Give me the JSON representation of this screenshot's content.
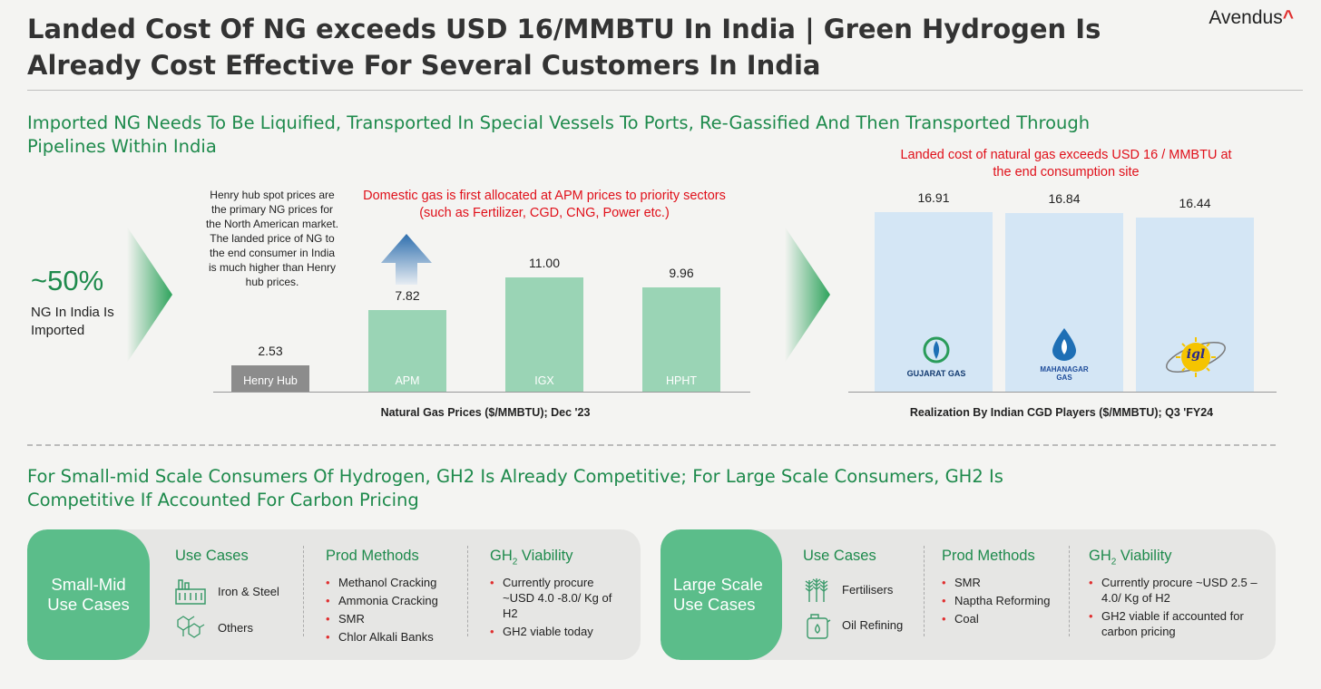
{
  "title": "Landed Cost Of NG exceeds USD 16/MMBTU In India | Green Hydrogen Is Already Cost Effective For Several Customers In India",
  "logo": {
    "text": "Avendus",
    "mark": "^"
  },
  "section1": {
    "heading": "Imported NG Needs To Be Liquified, Transported In Special Vessels To Ports, Re-Gassified And Then Transported Through Pipelines Within India",
    "stat_value": "~50%",
    "stat_label": "NG In India Is Imported",
    "henry_note": "Henry hub spot prices are the  primary NG prices for the North American market. The landed price of NG to the end consumer in India is much higher than Henry hub prices.",
    "apm_note": "Domestic gas is first allocated at APM prices to priority sectors (such as Fertilizer, CGD, CNG, Power etc.)",
    "landed_note": "Landed cost of natural gas exceeds USD 16 / MMBTU at the end consumption site"
  },
  "chart_data": [
    {
      "type": "bar",
      "title": "",
      "xlabel": "Natural Gas Prices ($/MMBTU); Dec '23",
      "categories": [
        "Henry Hub",
        "APM",
        "IGX",
        "HPHT"
      ],
      "values": [
        2.53,
        7.82,
        11.0,
        9.96
      ],
      "value_labels": [
        "2.53",
        "7.82",
        "11.00",
        "9.96"
      ],
      "ylim": [
        0,
        12
      ],
      "colors": [
        "#8c8c8c",
        "#9ad4b5",
        "#9ad4b5",
        "#9ad4b5"
      ]
    },
    {
      "type": "bar",
      "title": "",
      "xlabel": "Realization By Indian CGD Players ($/MMBTU); Q3 'FY24",
      "categories": [
        "Gujarat Gas",
        "Mahanagar Gas",
        "IGL"
      ],
      "values": [
        16.91,
        16.84,
        16.44
      ],
      "value_labels": [
        "16.91",
        "16.84",
        "16.44"
      ],
      "ylim": [
        0,
        17.6
      ],
      "colors": [
        "#d4e6f5",
        "#d4e6f5",
        "#d4e6f5"
      ]
    }
  ],
  "logos": {
    "gujarat": "GUJARAT GAS",
    "mahanagar1": "MAHANAGAR",
    "mahanagar2": "GAS",
    "igl": "igl"
  },
  "section2": {
    "heading": "For Small-mid Scale Consumers Of Hydrogen, GH2 Is Already Competitive; For Large Scale Consumers, GH2 Is Competitive If Accounted For Carbon Pricing"
  },
  "cards": [
    {
      "tag": "Small-Mid Use Cases",
      "use_cases_head": "Use Cases",
      "use_cases": [
        {
          "label": "Iron & Steel",
          "icon": "factory-icon"
        },
        {
          "label": "Others",
          "icon": "molecule-icon"
        }
      ],
      "methods_head": "Prod Methods",
      "methods": [
        "Methanol Cracking",
        "Ammonia Cracking",
        "SMR",
        "Chlor Alkali Banks"
      ],
      "viability_head": "Viability",
      "viability_prefix": "GH",
      "viability_sub": "2",
      "viability": [
        "Currently procure ~USD 4.0 -8.0/ Kg of H2",
        "GH2 viable today"
      ]
    },
    {
      "tag": "Large Scale Use Cases",
      "use_cases_head": "Use Cases",
      "use_cases": [
        {
          "label": "Fertilisers",
          "icon": "wheat-icon"
        },
        {
          "label": "Oil Refining",
          "icon": "oil-can-icon"
        }
      ],
      "methods_head": "Prod Methods",
      "methods": [
        "SMR",
        "Naptha Reforming",
        "Coal"
      ],
      "viability_head": "Viability",
      "viability_prefix": "GH",
      "viability_sub": "2",
      "viability": [
        "Currently procure ~USD 2.5 – 4.0/ Kg of H2",
        "GH2 viable if accounted for carbon pricing"
      ]
    }
  ]
}
